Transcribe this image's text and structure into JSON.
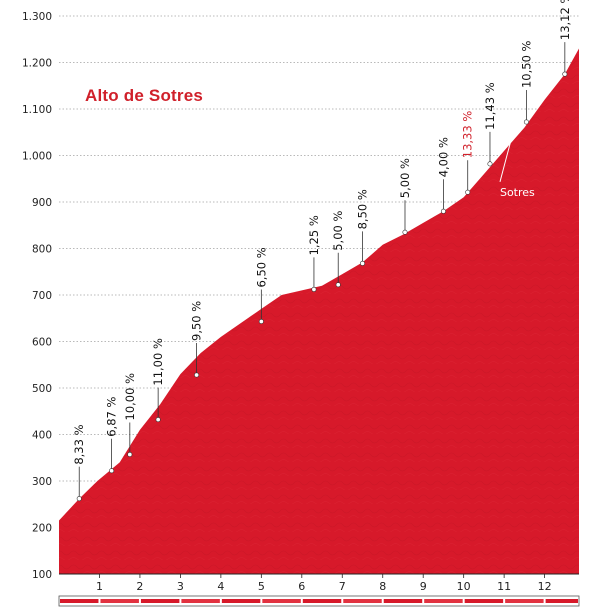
{
  "chart_data": {
    "type": "area",
    "title": "Alto de Sotres",
    "xlabel": "",
    "ylabel": "",
    "xlim": [
      0,
      12.85
    ],
    "ylim": [
      100,
      1300
    ],
    "y_ticks": [
      "1.300",
      "1.200",
      "1.100",
      "1.000",
      "900",
      "800",
      "700",
      "600",
      "500",
      "400",
      "300",
      "200",
      "100"
    ],
    "y_tick_values": [
      1300,
      1200,
      1100,
      1000,
      900,
      800,
      700,
      600,
      500,
      400,
      300,
      200,
      100
    ],
    "x_ticks": [
      "1",
      "2",
      "3",
      "4",
      "5",
      "6",
      "7",
      "8",
      "9",
      "10",
      "11",
      "12"
    ],
    "x_tick_values": [
      1,
      2,
      3,
      4,
      5,
      6,
      7,
      8,
      9,
      10,
      11,
      12
    ],
    "grid": true,
    "fill_color": "#d7192a",
    "profile": {
      "x": [
        0,
        0.5,
        0.95,
        1.5,
        2.0,
        2.5,
        3.0,
        3.5,
        4.0,
        4.5,
        5.0,
        5.5,
        6.0,
        6.5,
        7.0,
        7.5,
        8.0,
        8.5,
        9.0,
        9.5,
        10.0,
        10.5,
        11.0,
        11.5,
        12.0,
        12.5,
        12.85
      ],
      "y": [
        215,
        262,
        300,
        340,
        410,
        465,
        530,
        575,
        610,
        640,
        670,
        700,
        710,
        720,
        745,
        770,
        808,
        830,
        855,
        880,
        910,
        960,
        1010,
        1060,
        1120,
        1175,
        1230
      ]
    },
    "annotations": [
      {
        "x": 0.5,
        "y": 262,
        "label": "8,33 %",
        "color": "#111111"
      },
      {
        "x": 1.3,
        "y": 322,
        "label": "6,87 %",
        "color": "#111111"
      },
      {
        "x": 1.75,
        "y": 357,
        "label": "10,00 %",
        "color": "#111111"
      },
      {
        "x": 2.45,
        "y": 432,
        "label": "11,00 %",
        "color": "#111111"
      },
      {
        "x": 3.4,
        "y": 528,
        "label": "9,50 %",
        "color": "#111111"
      },
      {
        "x": 5.0,
        "y": 643,
        "label": "6,50 %",
        "color": "#111111"
      },
      {
        "x": 6.3,
        "y": 712,
        "label": "1,25 %",
        "color": "#111111"
      },
      {
        "x": 6.9,
        "y": 722,
        "label": "5,00 %",
        "color": "#111111"
      },
      {
        "x": 7.5,
        "y": 768,
        "label": "8,50 %",
        "color": "#111111"
      },
      {
        "x": 8.55,
        "y": 835,
        "label": "5,00 %",
        "color": "#111111"
      },
      {
        "x": 9.5,
        "y": 880,
        "label": "4,00 %",
        "color": "#111111"
      },
      {
        "x": 10.1,
        "y": 921,
        "label": "13,33 %",
        "color": "#d0202a"
      },
      {
        "x": 10.65,
        "y": 982,
        "label": "11,43 %",
        "color": "#111111"
      },
      {
        "x": 11.55,
        "y": 1072,
        "label": "10,50 %",
        "color": "#111111"
      },
      {
        "x": 12.5,
        "y": 1175,
        "label": "13,12 %",
        "color": "#111111"
      }
    ],
    "places": [
      {
        "name": "Sotres",
        "x": 10.65,
        "y": 982
      }
    ]
  }
}
